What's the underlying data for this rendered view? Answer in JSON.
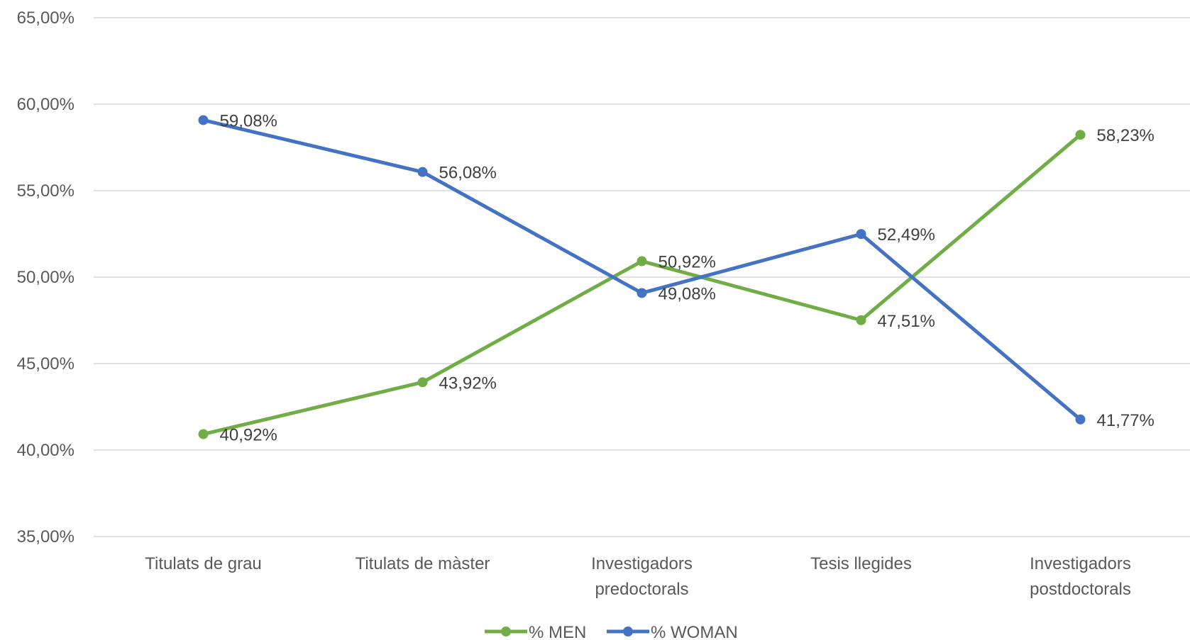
{
  "chart_data": {
    "type": "line",
    "categories": [
      [
        "Titulats de grau"
      ],
      [
        "Titulats de màster"
      ],
      [
        "Investigadors",
        "predoctorals"
      ],
      [
        "Tesis llegides"
      ],
      [
        "Investigadors",
        "postdoctorals"
      ]
    ],
    "series": [
      {
        "name": "% MEN",
        "color": "#70ad47",
        "values": [
          40.92,
          43.92,
          50.92,
          47.51,
          58.23
        ],
        "labels": [
          "40,92%",
          "43,92%",
          "50,92%",
          "47,51%",
          "58,23%"
        ]
      },
      {
        "name": "% WOMAN",
        "color": "#4472c4",
        "values": [
          59.08,
          56.08,
          49.08,
          52.49,
          41.77
        ],
        "labels": [
          "59,08%",
          "56,08%",
          "49,08%",
          "52,49%",
          "41,77%"
        ]
      }
    ],
    "ylim": [
      35,
      65
    ],
    "yticks": [
      35,
      40,
      45,
      50,
      55,
      60,
      65
    ],
    "ytick_labels": [
      "35,00%",
      "40,00%",
      "45,00%",
      "50,00%",
      "55,00%",
      "60,00%",
      "65,00%"
    ],
    "grid": true,
    "legend": "bottom"
  }
}
